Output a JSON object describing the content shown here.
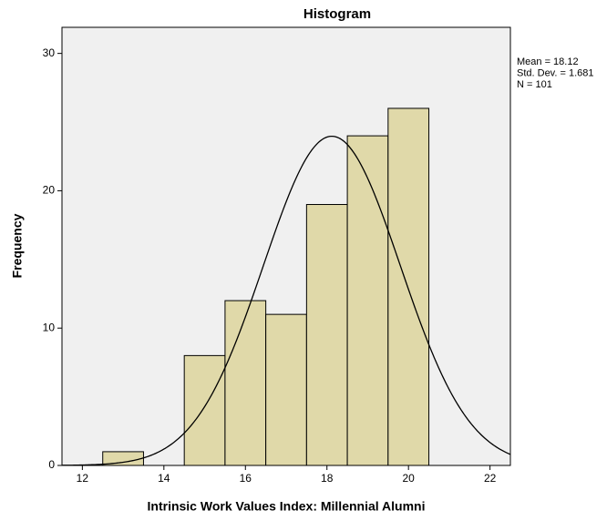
{
  "chart_data": {
    "type": "histogram",
    "title": "Histogram",
    "x_label": "Intrinsic Work Values Index: Millennial Alumni",
    "y_label": "Frequency",
    "bins": [
      12.5,
      13.5,
      14.5,
      15.5,
      16.5,
      17.5,
      18.5,
      19.5,
      20.5
    ],
    "values": [
      1,
      0,
      8,
      12,
      11,
      19,
      24,
      26
    ],
    "color": "#e0d9a9",
    "xlim": [
      11.5,
      22.5
    ],
    "xticks": [
      12,
      14,
      16,
      18,
      20,
      22
    ],
    "ylim": [
      0,
      31.9
    ],
    "yticks": [
      0,
      10,
      20,
      30
    ],
    "stats": {
      "values": [
        18.12,
        1.681,
        101
      ],
      "value_labels": [
        "Mean = 18.12",
        "Std. Dev. = 1.681",
        "N = 101"
      ]
    },
    "normal_curve": true
  }
}
